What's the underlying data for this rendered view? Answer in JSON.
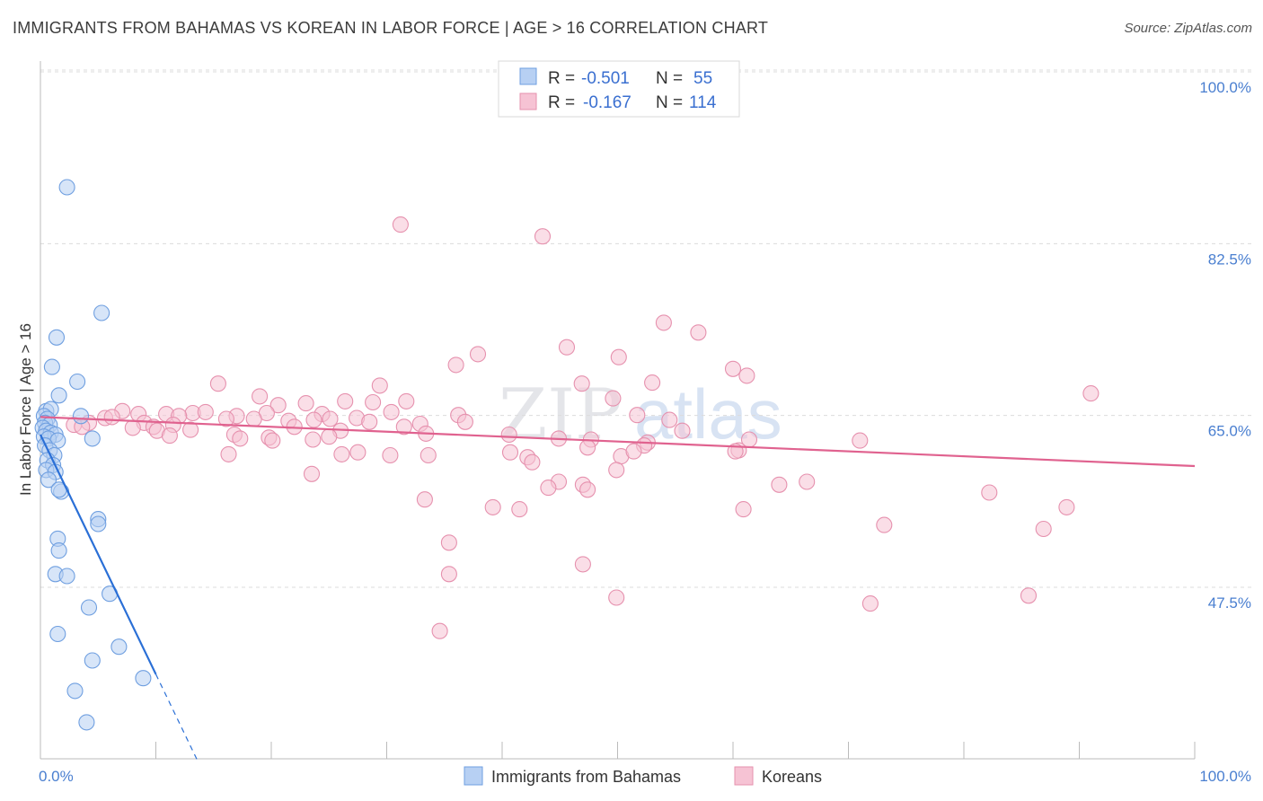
{
  "title": "IMMIGRANTS FROM BAHAMAS VS KOREAN IN LABOR FORCE | AGE > 16 CORRELATION CHART",
  "source": "Source: ZipAtlas.com",
  "watermark": {
    "zip": "ZIP",
    "atlas": "atlas"
  },
  "colors": {
    "blue_fill": "#b7d0f3",
    "blue_stroke": "#6f9fe0",
    "blue_line": "#2a6fd6",
    "pink_fill": "#f6c3d4",
    "pink_stroke": "#e691ae",
    "pink_line": "#e0628f",
    "tick": "#4a7fd0",
    "grid": "#dcdcdc"
  },
  "legend": {
    "rows": [
      {
        "r_label": "R = ",
        "r_value": "-0.501",
        "n_label": "N = ",
        "n_value": "55"
      },
      {
        "r_label": "R = ",
        "r_value": "-0.167",
        "n_label": "N = ",
        "n_value": "114"
      }
    ]
  },
  "chart_data": {
    "type": "scatter",
    "ylabel": "In Labor Force | Age > 16",
    "xlabel": "",
    "xlim": [
      0,
      100
    ],
    "ylim": [
      32,
      102
    ],
    "x_tick_labels": [
      {
        "value": 0,
        "label": "0.0%"
      },
      {
        "value": 100,
        "label": "100.0%"
      }
    ],
    "y_tick_labels": [
      {
        "value": 100,
        "label": "100.0%"
      },
      {
        "value": 82.5,
        "label": "82.5%"
      },
      {
        "value": 65,
        "label": "65.0%"
      },
      {
        "value": 47.5,
        "label": "47.5%"
      }
    ],
    "legend_position": "top-center",
    "series": [
      {
        "name": "Immigrants from Bahamas",
        "R": -0.501,
        "N": 55,
        "trend": {
          "x0": 0,
          "y0": 64.6,
          "x1": 10.0,
          "y1": 40.2,
          "dash_to_x": 13.6
        },
        "points": [
          [
            2.3,
            89.8
          ],
          [
            5.3,
            77.0
          ],
          [
            1.4,
            74.5
          ],
          [
            1.0,
            71.5
          ],
          [
            3.2,
            70.0
          ],
          [
            1.6,
            68.6
          ],
          [
            0.5,
            67.0
          ],
          [
            0.9,
            67.2
          ],
          [
            0.3,
            66.5
          ],
          [
            0.6,
            66.2
          ],
          [
            0.4,
            65.8
          ],
          [
            0.8,
            65.6
          ],
          [
            0.2,
            65.3
          ],
          [
            0.5,
            65.0
          ],
          [
            0.9,
            64.8
          ],
          [
            1.3,
            64.6
          ],
          [
            0.3,
            64.4
          ],
          [
            0.7,
            64.2
          ],
          [
            1.5,
            64.0
          ],
          [
            4.5,
            64.2
          ],
          [
            3.5,
            66.5
          ],
          [
            0.4,
            63.5
          ],
          [
            0.8,
            63.0
          ],
          [
            1.2,
            62.5
          ],
          [
            0.6,
            62.0
          ],
          [
            1.1,
            61.5
          ],
          [
            0.5,
            61.0
          ],
          [
            1.3,
            60.8
          ],
          [
            0.7,
            60.0
          ],
          [
            1.8,
            58.8
          ],
          [
            1.6,
            59.0
          ],
          [
            5.0,
            56.0
          ],
          [
            5.0,
            55.5
          ],
          [
            1.5,
            54.0
          ],
          [
            1.6,
            52.8
          ],
          [
            1.3,
            50.4
          ],
          [
            2.3,
            50.2
          ],
          [
            6.0,
            48.4
          ],
          [
            4.2,
            47.0
          ],
          [
            1.5,
            44.3
          ],
          [
            6.8,
            43.0
          ],
          [
            4.5,
            41.6
          ],
          [
            8.9,
            39.8
          ],
          [
            3.0,
            38.5
          ],
          [
            4.0,
            35.3
          ]
        ]
      },
      {
        "name": "Koreans",
        "R": -0.167,
        "N": 114,
        "trend": {
          "x0": 0,
          "y0": 66.4,
          "x1": 100,
          "y1": 61.4
        },
        "points": [
          [
            31.2,
            86.0
          ],
          [
            43.5,
            84.8
          ],
          [
            54.0,
            76.0
          ],
          [
            57.0,
            75.0
          ],
          [
            45.6,
            73.5
          ],
          [
            37.9,
            72.8
          ],
          [
            50.1,
            72.5
          ],
          [
            36.0,
            71.7
          ],
          [
            60.0,
            71.3
          ],
          [
            61.2,
            70.6
          ],
          [
            15.4,
            69.8
          ],
          [
            29.4,
            69.6
          ],
          [
            46.9,
            69.8
          ],
          [
            53.0,
            69.9
          ],
          [
            91.0,
            68.8
          ],
          [
            19.0,
            68.5
          ],
          [
            26.4,
            68.0
          ],
          [
            28.8,
            67.9
          ],
          [
            31.7,
            68.0
          ],
          [
            20.6,
            67.6
          ],
          [
            23.0,
            67.8
          ],
          [
            49.6,
            68.3
          ],
          [
            7.1,
            67.0
          ],
          [
            8.5,
            66.7
          ],
          [
            10.9,
            66.7
          ],
          [
            13.2,
            66.8
          ],
          [
            14.3,
            66.9
          ],
          [
            17.0,
            66.5
          ],
          [
            19.6,
            66.8
          ],
          [
            24.4,
            66.7
          ],
          [
            27.4,
            66.3
          ],
          [
            30.4,
            66.9
          ],
          [
            36.2,
            66.6
          ],
          [
            51.7,
            66.6
          ],
          [
            5.6,
            66.3
          ],
          [
            6.2,
            66.4
          ],
          [
            9.0,
            65.8
          ],
          [
            12.0,
            66.5
          ],
          [
            16.1,
            66.2
          ],
          [
            18.5,
            66.2
          ],
          [
            21.5,
            66.0
          ],
          [
            23.7,
            66.1
          ],
          [
            25.1,
            66.2
          ],
          [
            28.5,
            65.9
          ],
          [
            32.9,
            65.7
          ],
          [
            36.8,
            65.9
          ],
          [
            54.5,
            66.1
          ],
          [
            2.9,
            65.6
          ],
          [
            4.2,
            65.8
          ],
          [
            8.0,
            65.3
          ],
          [
            9.8,
            65.4
          ],
          [
            11.5,
            65.6
          ],
          [
            13.0,
            65.1
          ],
          [
            22.0,
            65.4
          ],
          [
            26.0,
            65.0
          ],
          [
            31.5,
            65.4
          ],
          [
            55.6,
            65.0
          ],
          [
            3.6,
            65.4
          ],
          [
            10.1,
            65.0
          ],
          [
            11.2,
            64.5
          ],
          [
            16.8,
            64.6
          ],
          [
            17.3,
            64.2
          ],
          [
            19.8,
            64.3
          ],
          [
            20.1,
            64.0
          ],
          [
            23.6,
            64.1
          ],
          [
            25.0,
            64.4
          ],
          [
            33.4,
            64.7
          ],
          [
            40.6,
            64.6
          ],
          [
            44.9,
            64.2
          ],
          [
            47.7,
            64.1
          ],
          [
            52.6,
            63.8
          ],
          [
            61.4,
            64.1
          ],
          [
            71.0,
            64.0
          ],
          [
            60.5,
            63.0
          ],
          [
            47.4,
            63.3
          ],
          [
            52.3,
            63.5
          ],
          [
            60.2,
            62.9
          ],
          [
            26.1,
            62.6
          ],
          [
            27.5,
            62.8
          ],
          [
            30.3,
            62.5
          ],
          [
            33.6,
            62.5
          ],
          [
            42.2,
            62.3
          ],
          [
            40.7,
            62.8
          ],
          [
            50.3,
            62.4
          ],
          [
            51.4,
            62.9
          ],
          [
            16.3,
            62.6
          ],
          [
            42.6,
            61.8
          ],
          [
            49.9,
            61.0
          ],
          [
            23.5,
            60.6
          ],
          [
            44.9,
            59.8
          ],
          [
            47.0,
            59.5
          ],
          [
            66.4,
            59.8
          ],
          [
            44.0,
            59.2
          ],
          [
            47.4,
            59.0
          ],
          [
            33.3,
            58.0
          ],
          [
            64.0,
            59.5
          ],
          [
            82.2,
            58.7
          ],
          [
            39.2,
            57.2
          ],
          [
            41.5,
            57.0
          ],
          [
            60.9,
            57.0
          ],
          [
            88.9,
            57.2
          ],
          [
            73.1,
            55.4
          ],
          [
            86.9,
            55.0
          ],
          [
            35.4,
            53.6
          ],
          [
            47.0,
            51.4
          ],
          [
            35.4,
            50.4
          ],
          [
            49.9,
            48.0
          ],
          [
            71.9,
            47.4
          ],
          [
            85.6,
            48.2
          ],
          [
            34.6,
            44.6
          ]
        ]
      }
    ]
  }
}
